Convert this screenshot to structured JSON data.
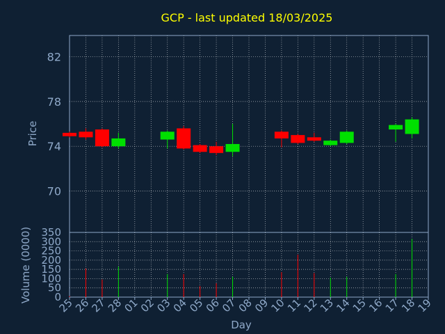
{
  "title": "GCP - last updated 18/03/2025",
  "colors": {
    "background": "#0f2033",
    "title": "#ffff00",
    "axis_text": "#8fa9c9",
    "frame": "#8fa9c9",
    "grid": "#ffffff",
    "up": "#00e000",
    "down": "#ff0000"
  },
  "chart_data": [
    {
      "type": "candlestick",
      "ylabel": "Price",
      "ylim": [
        66.3,
        83.9
      ],
      "yticks": [
        70,
        74,
        78,
        82
      ],
      "grid": true,
      "categories": [
        "25",
        "26",
        "27",
        "28",
        "01",
        "02",
        "03",
        "04",
        "05",
        "06",
        "07",
        "08",
        "09",
        "10",
        "11",
        "12",
        "13",
        "14",
        "15",
        "16",
        "17",
        "18",
        "19"
      ],
      "candles": [
        {
          "x": "25",
          "open": 75.2,
          "close": 74.9,
          "high": 75.3,
          "low": 74.8
        },
        {
          "x": "26",
          "open": 75.3,
          "close": 74.8,
          "high": 75.6,
          "low": 74.6
        },
        {
          "x": "27",
          "open": 75.5,
          "close": 74.0,
          "high": 75.6,
          "low": 73.9
        },
        {
          "x": "28",
          "open": 74.0,
          "close": 74.7,
          "high": 75.2,
          "low": 73.8
        },
        {
          "x": "03",
          "open": 74.6,
          "close": 75.3,
          "high": 75.4,
          "low": 73.8
        },
        {
          "x": "04",
          "open": 75.6,
          "close": 73.8,
          "high": 75.8,
          "low": 73.7
        },
        {
          "x": "05",
          "open": 74.1,
          "close": 73.5,
          "high": 74.2,
          "low": 73.4
        },
        {
          "x": "06",
          "open": 74.0,
          "close": 73.4,
          "high": 74.4,
          "low": 73.2
        },
        {
          "x": "07",
          "open": 73.5,
          "close": 74.2,
          "high": 76.0,
          "low": 73.1
        },
        {
          "x": "10",
          "open": 75.3,
          "close": 74.7,
          "high": 75.4,
          "low": 73.9
        },
        {
          "x": "11",
          "open": 75.0,
          "close": 74.3,
          "high": 75.1,
          "low": 74.2
        },
        {
          "x": "12",
          "open": 74.8,
          "close": 74.5,
          "high": 75.2,
          "low": 74.4
        },
        {
          "x": "13",
          "open": 74.1,
          "close": 74.5,
          "high": 74.6,
          "low": 74.0
        },
        {
          "x": "14",
          "open": 74.3,
          "close": 75.3,
          "high": 75.4,
          "low": 74.2
        },
        {
          "x": "17",
          "open": 75.5,
          "close": 75.9,
          "high": 76.0,
          "low": 74.4
        },
        {
          "x": "18",
          "open": 75.1,
          "close": 76.4,
          "high": 76.6,
          "low": 74.7
        }
      ]
    },
    {
      "type": "bar",
      "ylabel": "Volume (0000)",
      "xlabel": "Day",
      "ylim": [
        0,
        350
      ],
      "yticks": [
        0,
        50,
        100,
        150,
        200,
        250,
        300,
        350
      ],
      "grid": true,
      "categories": [
        "25",
        "26",
        "27",
        "28",
        "01",
        "02",
        "03",
        "04",
        "05",
        "06",
        "07",
        "08",
        "09",
        "10",
        "11",
        "12",
        "13",
        "14",
        "15",
        "16",
        "17",
        "18",
        "19"
      ],
      "bars": [
        {
          "x": "25",
          "value": 5,
          "direction": "down"
        },
        {
          "x": "26",
          "value": 155,
          "direction": "down"
        },
        {
          "x": "27",
          "value": 95,
          "direction": "down"
        },
        {
          "x": "28",
          "value": 165,
          "direction": "up"
        },
        {
          "x": "03",
          "value": 125,
          "direction": "up"
        },
        {
          "x": "04",
          "value": 125,
          "direction": "down"
        },
        {
          "x": "05",
          "value": 60,
          "direction": "down"
        },
        {
          "x": "06",
          "value": 75,
          "direction": "down"
        },
        {
          "x": "07",
          "value": 110,
          "direction": "up"
        },
        {
          "x": "10",
          "value": 135,
          "direction": "down"
        },
        {
          "x": "11",
          "value": 230,
          "direction": "down"
        },
        {
          "x": "12",
          "value": 130,
          "direction": "down"
        },
        {
          "x": "13",
          "value": 105,
          "direction": "up"
        },
        {
          "x": "14",
          "value": 110,
          "direction": "up"
        },
        {
          "x": "17",
          "value": 125,
          "direction": "up"
        },
        {
          "x": "18",
          "value": 315,
          "direction": "up"
        }
      ]
    }
  ]
}
